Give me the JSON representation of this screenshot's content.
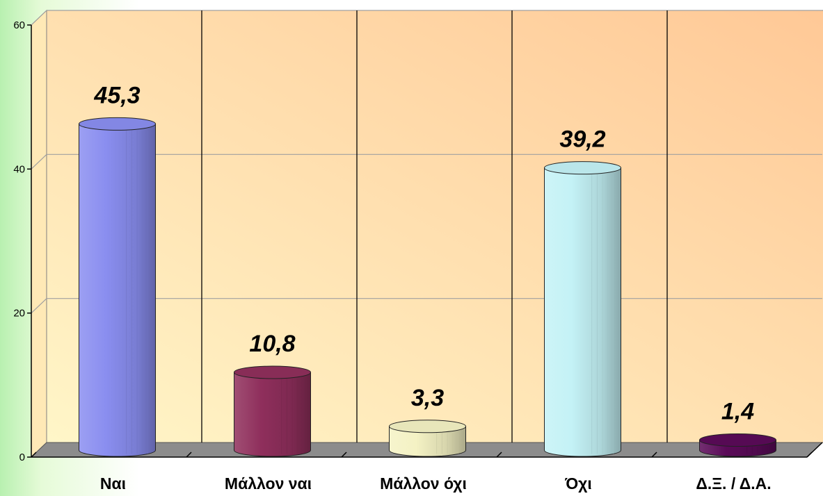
{
  "chart_data": {
    "type": "bar",
    "categories": [
      "Ναι",
      "Μάλλον ναι",
      "Μάλλον όχι",
      "Όχι",
      "Δ.Ξ. / Δ.Α."
    ],
    "values": [
      45.3,
      10.8,
      3.3,
      39.2,
      1.4
    ],
    "data_labels": [
      "45,3",
      "10,8",
      "3,3",
      "39,2",
      "1,4"
    ],
    "ylim": [
      0,
      60
    ],
    "yticks": [
      "0",
      "20",
      "40",
      "60"
    ],
    "ytick_values": [
      0,
      20,
      40,
      60
    ],
    "grid": true,
    "title": "",
    "xlabel": "",
    "ylabel": "",
    "bar_colors": [
      "#8a8ef0",
      "#8f2f5c",
      "#f4f2c4",
      "#c4f2f6",
      "#5a0a58"
    ],
    "plot_background_colors": [
      "#fff6c8",
      "#ffc896"
    ],
    "floor_color": "#8c8c8c"
  }
}
